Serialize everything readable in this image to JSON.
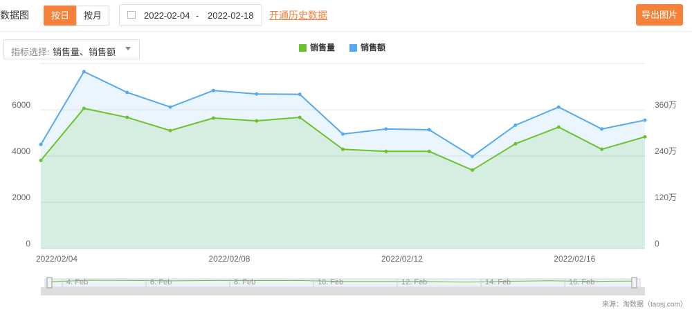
{
  "toolbar": {
    "title": "数据图",
    "day_button": "按日",
    "month_button": "按月",
    "date_start": "2022-02-04",
    "date_separator": "-",
    "date_end": "2022-02-18",
    "history_link": "开通历史数据",
    "export_button": "导出图片"
  },
  "selector": {
    "label": "指标选择:",
    "value": "销售量、销售额"
  },
  "source": "来源：淘数据（taosj.com）",
  "zoom": {
    "labels": [
      "4. Feb",
      "6. Feb",
      "8. Feb",
      "10. Feb",
      "12. Feb",
      "14. Feb",
      "16. Feb"
    ]
  },
  "chart_data": {
    "type": "line",
    "categories": [
      "2022/02/04",
      null,
      null,
      null,
      "2022/02/08",
      null,
      null,
      null,
      "2022/02/12",
      null,
      null,
      null,
      "2022/02/16",
      null,
      null
    ],
    "series": [
      {
        "name": "销售量",
        "color": "#6cc22c",
        "values": [
          3810,
          6060,
          5670,
          5100,
          5640,
          5520,
          5670,
          4290,
          4200,
          4200,
          3390,
          4530,
          5250,
          4290,
          4830
        ]
      },
      {
        "name": "销售额",
        "color": "#55a9f0",
        "axis": "y2",
        "values": [
          2700000,
          4590000,
          4050000,
          3670000,
          4100000,
          4010000,
          4000000,
          2970000,
          3100000,
          3080000,
          2390000,
          3200000,
          3670000,
          3100000,
          3330000
        ]
      }
    ],
    "ylim": [
      0,
      8000
    ],
    "yticks": [
      0,
      2000,
      4000,
      6000
    ],
    "y2lim": [
      0,
      4800000
    ],
    "y2ticks": [
      0,
      {
        "value": 1200000,
        "label": "120万"
      },
      {
        "value": 2400000,
        "label": "240万"
      },
      {
        "value": 3600000,
        "label": "360万"
      }
    ],
    "grid": true,
    "legend": "top"
  }
}
